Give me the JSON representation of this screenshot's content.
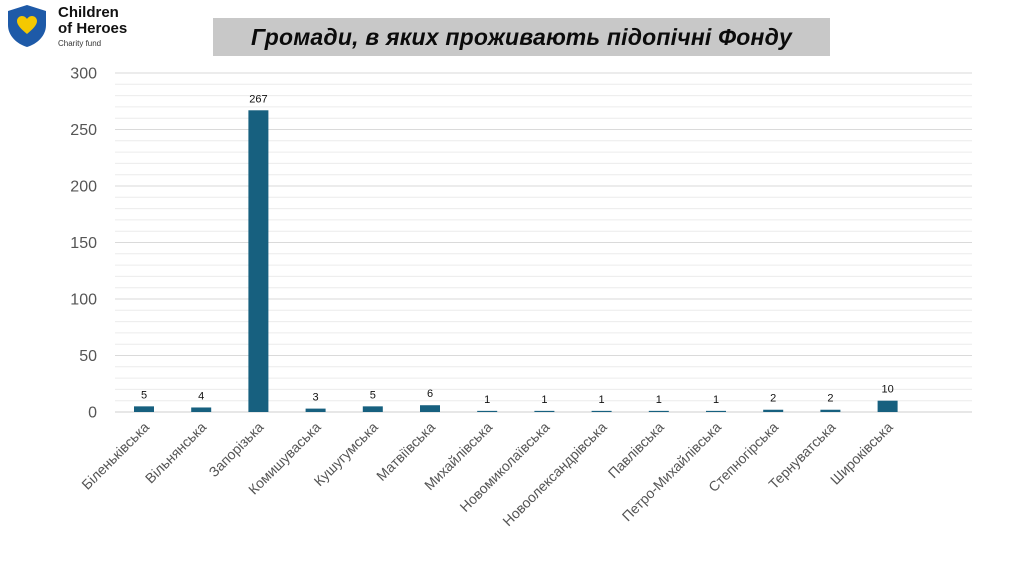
{
  "logo": {
    "line1": "Children",
    "line2": "of Heroes",
    "subtitle": "Charity fund",
    "colors": {
      "shield": "#1e5aa8",
      "heart": "#f5c800"
    }
  },
  "chart_data": {
    "type": "bar",
    "title": "Громади, в яких проживають підопічні Фонду",
    "categories": [
      "Біленьківська",
      "Вільнянська",
      "Запорізька",
      "Комишуваська",
      "Кушугумська",
      "Матвіївська",
      "Михайлівська",
      "Новомиколаївська",
      "Новоолександрівська",
      "Павлівська",
      "Петро-Михайлівська",
      "Степногірська",
      "Тернуватська",
      "Широківська"
    ],
    "values": [
      5,
      4,
      267,
      3,
      5,
      6,
      1,
      1,
      1,
      1,
      1,
      2,
      2,
      10
    ],
    "ylim": [
      0,
      300
    ],
    "yticks": [
      0,
      50,
      100,
      150,
      200,
      250,
      300
    ],
    "xlabel": "",
    "ylabel": "",
    "data_labels": true,
    "grid": true,
    "legend": "none",
    "bar_color": "#17607f"
  }
}
